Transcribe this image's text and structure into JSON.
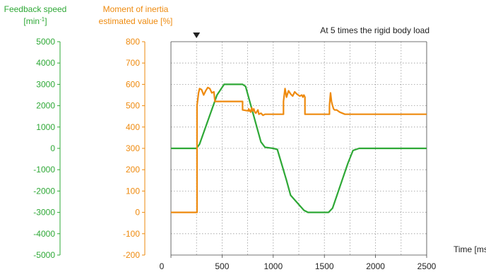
{
  "chart_data": {
    "type": "line",
    "annotation": "At 5 times the rigid body load",
    "xlabel": "Time [ms]",
    "xlim": [
      0,
      2500
    ],
    "x_ticks": [
      "0",
      "500",
      "1000",
      "1500",
      "2000",
      "2500"
    ],
    "speed_axis": {
      "label_line1": "Feedback speed",
      "label_line2_pre": "[min",
      "label_line2_sup": "-1",
      "label_line2_post": "]",
      "ylim": [
        -5000,
        5000
      ],
      "ticks": [
        "5000",
        "4000",
        "3000",
        "2000",
        "1000",
        "0",
        "-1000",
        "-2000",
        "-3000",
        "-4000",
        "-5000"
      ]
    },
    "inertia_axis": {
      "label_line1": "Moment of inertia",
      "label_line2": "estimated value [%]",
      "ylim": [
        -200,
        800
      ],
      "ticks": [
        "800",
        "700",
        "600",
        "500",
        "400",
        "300",
        "200",
        "100",
        "0",
        "-100",
        "-200"
      ]
    },
    "grid": true,
    "marker_x": 250,
    "series": [
      {
        "key": "speed",
        "axis": "speed",
        "color": "#2ea836",
        "x": [
          0,
          250,
          280,
          450,
          520,
          700,
          730,
          880,
          920,
          1000,
          1040,
          1130,
          1170,
          1300,
          1340,
          1540,
          1580,
          1730,
          1780,
          1840,
          2500
        ],
        "y": [
          0,
          0,
          200,
          2500,
          3000,
          3000,
          2900,
          300,
          50,
          0,
          -50,
          -1500,
          -2200,
          -2900,
          -3000,
          -3000,
          -2800,
          -700,
          -100,
          0,
          0
        ]
      },
      {
        "key": "inertia",
        "axis": "inertia",
        "color": "#ee8a0e",
        "x": [
          0,
          255,
          255,
          270,
          280,
          300,
          320,
          340,
          360,
          380,
          400,
          420,
          430,
          700,
          700,
          760,
          760,
          780,
          790,
          800,
          810,
          820,
          830,
          850,
          860,
          880,
          900,
          920,
          1100,
          1100,
          1115,
          1130,
          1150,
          1170,
          1190,
          1210,
          1230,
          1260,
          1280,
          1290,
          1300,
          1310,
          1310,
          1550,
          1550,
          1560,
          1570,
          1580,
          1590,
          1600,
          1620,
          1650,
          1700,
          2500
        ],
        "y": [
          0,
          0,
          500,
          560,
          580,
          575,
          550,
          570,
          585,
          580,
          560,
          565,
          520,
          520,
          480,
          475,
          485,
          470,
          490,
          475,
          485,
          470,
          465,
          480,
          460,
          465,
          455,
          460,
          460,
          520,
          580,
          540,
          570,
          555,
          545,
          565,
          555,
          545,
          550,
          540,
          550,
          540,
          460,
          460,
          500,
          560,
          520,
          500,
          485,
          480,
          480,
          470,
          460,
          460
        ]
      }
    ]
  }
}
